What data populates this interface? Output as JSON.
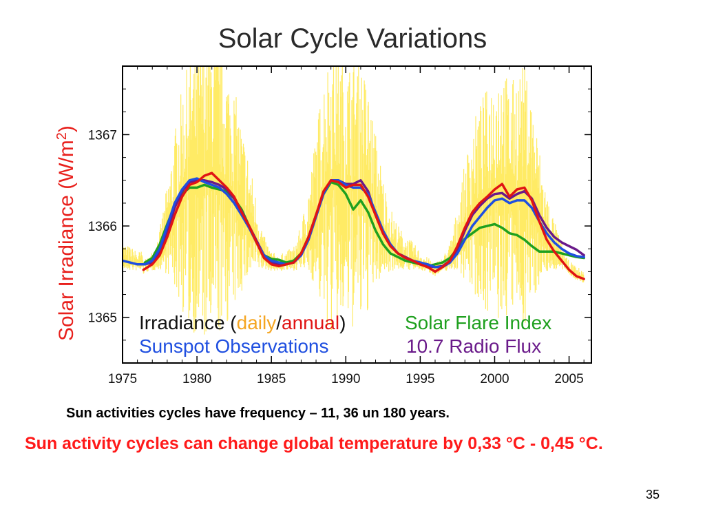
{
  "slide": {
    "caption_1": "Sun activities cycles have frequency – 11, 36 un 180 years.",
    "caption_2": "Sun activity cycles can change global temperature by 0,33 °C - 0,45 °C.",
    "page_number": "35"
  },
  "legend": {
    "irradiance_prefix": "Irradiance (",
    "daily": "daily",
    "slash": "/",
    "annual": "annual",
    "irradiance_suffix": ")",
    "sunspot": "Sunspot Observations",
    "flare": "Solar Flare Index",
    "radio": "10.7 Radio Flux"
  },
  "chart_data": {
    "type": "line",
    "title": "Solar Cycle Variations",
    "xlabel": "",
    "ylabel": "Solar Irradiance (W/m2)",
    "ylabel_parts": {
      "base": "Solar Irradiance (W/m",
      "sup": "2",
      "close": ")"
    },
    "xlim": [
      1975,
      2006.5
    ],
    "ylim": [
      1364.5,
      1367.75
    ],
    "x_ticks": [
      1975,
      1980,
      1985,
      1990,
      1995,
      2000,
      2005
    ],
    "x_tick_labels": [
      "1975",
      "1980",
      "1985",
      "1990",
      "1995",
      "2000",
      "2005"
    ],
    "y_ticks": [
      1365,
      1366,
      1367
    ],
    "y_tick_labels": [
      "1365",
      "1366",
      "1367"
    ],
    "colors": {
      "daily": "#ffe84a",
      "annual": "#e01414",
      "sunspot": "#1f4fe0",
      "flare": "#1fa01f",
      "radio": "#6a1a8a",
      "ylabel": "#e8201c",
      "daily_text": "#f5a623"
    },
    "series": [
      {
        "key": "annual",
        "x": [
          1976.4,
          1977.0,
          1977.5,
          1978.0,
          1978.5,
          1979.0,
          1979.5,
          1980.0,
          1980.5,
          1981.0,
          1981.5,
          1982.0,
          1982.5,
          1983.0,
          1983.5,
          1984.0,
          1984.5,
          1985.0,
          1985.5,
          1986.0,
          1986.5,
          1987.0,
          1987.5,
          1988.0,
          1988.5,
          1989.0,
          1989.5,
          1990.0,
          1990.5,
          1991.0,
          1991.5,
          1992.0,
          1992.5,
          1993.0,
          1993.5,
          1994.0,
          1994.5,
          1995.0,
          1995.5,
          1996.0,
          1996.5,
          1997.0,
          1997.5,
          1998.0,
          1998.5,
          1999.0,
          1999.5,
          2000.0,
          2000.5,
          2001.0,
          2001.5,
          2002.0,
          2002.5,
          2003.0,
          2003.5,
          2004.0,
          2004.5,
          2005.0,
          2005.5,
          2006.0
        ],
        "y": [
          1365.52,
          1365.58,
          1365.68,
          1365.88,
          1366.12,
          1366.32,
          1366.45,
          1366.48,
          1366.55,
          1366.58,
          1366.5,
          1366.42,
          1366.32,
          1366.15,
          1366.0,
          1365.82,
          1365.65,
          1365.58,
          1365.56,
          1365.58,
          1365.6,
          1365.7,
          1365.88,
          1366.12,
          1366.38,
          1366.5,
          1366.48,
          1366.42,
          1366.45,
          1366.45,
          1366.32,
          1366.12,
          1365.92,
          1365.78,
          1365.7,
          1365.65,
          1365.62,
          1365.58,
          1365.55,
          1365.5,
          1365.55,
          1365.62,
          1365.78,
          1365.98,
          1366.15,
          1366.25,
          1366.32,
          1366.4,
          1366.46,
          1366.32,
          1366.4,
          1366.42,
          1366.28,
          1366.05,
          1365.85,
          1365.72,
          1365.62,
          1365.52,
          1365.45,
          1365.42
        ]
      },
      {
        "key": "sunspot",
        "x": [
          1975.0,
          1975.5,
          1976.0,
          1976.5,
          1977.0,
          1977.5,
          1978.0,
          1978.5,
          1979.0,
          1979.5,
          1980.0,
          1980.5,
          1981.0,
          1981.5,
          1982.0,
          1982.5,
          1983.0,
          1983.5,
          1984.0,
          1984.5,
          1985.0,
          1985.5,
          1986.0,
          1986.5,
          1987.0,
          1987.5,
          1988.0,
          1988.5,
          1989.0,
          1989.5,
          1990.0,
          1990.5,
          1991.0,
          1991.5,
          1992.0,
          1992.5,
          1993.0,
          1993.5,
          1994.0,
          1994.5,
          1995.0,
          1995.5,
          1996.0,
          1996.5,
          1997.0,
          1997.5,
          1998.0,
          1998.5,
          1999.0,
          1999.5,
          2000.0,
          2000.5,
          2001.0,
          2001.5,
          2002.0,
          2002.5,
          2003.0,
          2003.5,
          2004.0,
          2004.5,
          2005.0,
          2005.5,
          2006.0
        ],
        "y": [
          1365.62,
          1365.6,
          1365.58,
          1365.58,
          1365.62,
          1365.75,
          1366.0,
          1366.25,
          1366.4,
          1366.5,
          1366.52,
          1366.48,
          1366.45,
          1366.42,
          1366.35,
          1366.25,
          1366.12,
          1365.98,
          1365.82,
          1365.68,
          1365.62,
          1365.6,
          1365.58,
          1365.6,
          1365.68,
          1365.85,
          1366.1,
          1366.35,
          1366.5,
          1366.5,
          1366.45,
          1366.42,
          1366.42,
          1366.35,
          1366.15,
          1365.95,
          1365.8,
          1365.7,
          1365.65,
          1365.62,
          1365.6,
          1365.58,
          1365.55,
          1365.55,
          1365.6,
          1365.7,
          1365.85,
          1366.0,
          1366.1,
          1366.2,
          1366.28,
          1366.3,
          1366.25,
          1366.28,
          1366.28,
          1366.2,
          1366.05,
          1365.92,
          1365.82,
          1365.75,
          1365.7,
          1365.67,
          1365.66
        ]
      },
      {
        "key": "flare",
        "x": [
          1976.5,
          1977.0,
          1977.5,
          1978.0,
          1978.5,
          1979.0,
          1979.5,
          1980.0,
          1980.5,
          1981.0,
          1981.5,
          1982.0,
          1982.5,
          1983.0,
          1983.5,
          1984.0,
          1984.5,
          1985.0,
          1985.5,
          1986.0,
          1986.5,
          1987.0,
          1987.5,
          1988.0,
          1988.5,
          1989.0,
          1989.5,
          1990.0,
          1990.5,
          1991.0,
          1991.5,
          1992.0,
          1992.5,
          1993.0,
          1993.5,
          1994.0,
          1994.5,
          1995.0,
          1995.5,
          1996.0,
          1996.5,
          1997.0,
          1997.5,
          1998.0,
          1998.5,
          1999.0,
          1999.5,
          2000.0,
          2000.5,
          2001.0,
          2001.5,
          2002.0,
          2002.5,
          2003.0,
          2003.5,
          2004.0,
          2004.5,
          2005.0,
          2005.5,
          2006.0
        ],
        "y": [
          1365.6,
          1365.65,
          1365.8,
          1366.02,
          1366.22,
          1366.35,
          1366.42,
          1366.42,
          1366.45,
          1366.42,
          1366.4,
          1366.38,
          1366.3,
          1366.18,
          1366.0,
          1365.82,
          1365.68,
          1365.64,
          1365.63,
          1365.6,
          1365.62,
          1365.7,
          1365.88,
          1366.12,
          1366.35,
          1366.48,
          1366.45,
          1366.35,
          1366.18,
          1366.28,
          1366.15,
          1365.95,
          1365.8,
          1365.7,
          1365.66,
          1365.62,
          1365.6,
          1365.58,
          1365.56,
          1365.58,
          1365.6,
          1365.65,
          1365.75,
          1365.86,
          1365.92,
          1365.98,
          1366.0,
          1366.02,
          1365.98,
          1365.92,
          1365.9,
          1365.85,
          1365.78,
          1365.72,
          1365.72,
          1365.72,
          1365.7,
          1365.68,
          1365.66,
          1365.65
        ]
      },
      {
        "key": "radio",
        "x": [
          1976.5,
          1977.0,
          1977.5,
          1978.0,
          1978.5,
          1979.0,
          1979.5,
          1980.0,
          1980.5,
          1981.0,
          1981.5,
          1982.0,
          1982.5,
          1983.0,
          1983.5,
          1984.0,
          1984.5,
          1985.0,
          1985.5,
          1986.0,
          1986.5,
          1987.0,
          1987.5,
          1988.0,
          1988.5,
          1989.0,
          1989.5,
          1990.0,
          1990.5,
          1991.0,
          1991.5,
          1992.0,
          1992.5,
          1993.0,
          1993.5,
          1994.0,
          1994.5,
          1995.0,
          1995.5,
          1996.0,
          1996.5,
          1997.0,
          1997.5,
          1998.0,
          1998.5,
          1999.0,
          1999.5,
          2000.0,
          2000.5,
          2001.0,
          2001.5,
          2002.0,
          2002.5,
          2003.0,
          2003.5,
          2004.0,
          2004.5,
          2005.0,
          2005.5,
          2006.0
        ],
        "y": [
          1365.58,
          1365.6,
          1365.72,
          1365.95,
          1366.2,
          1366.38,
          1366.48,
          1366.5,
          1366.5,
          1366.48,
          1366.45,
          1366.4,
          1366.3,
          1366.16,
          1366.0,
          1365.84,
          1365.68,
          1365.6,
          1365.58,
          1365.58,
          1365.6,
          1365.68,
          1365.88,
          1366.12,
          1366.36,
          1366.5,
          1366.5,
          1366.46,
          1366.46,
          1366.5,
          1366.38,
          1366.12,
          1365.92,
          1365.78,
          1365.7,
          1365.66,
          1365.62,
          1365.58,
          1365.56,
          1365.55,
          1365.56,
          1365.62,
          1365.75,
          1365.95,
          1366.12,
          1366.22,
          1366.3,
          1366.35,
          1366.36,
          1366.3,
          1366.35,
          1366.38,
          1366.3,
          1366.12,
          1365.98,
          1365.88,
          1365.82,
          1365.78,
          1365.74,
          1365.68
        ]
      }
    ]
  }
}
